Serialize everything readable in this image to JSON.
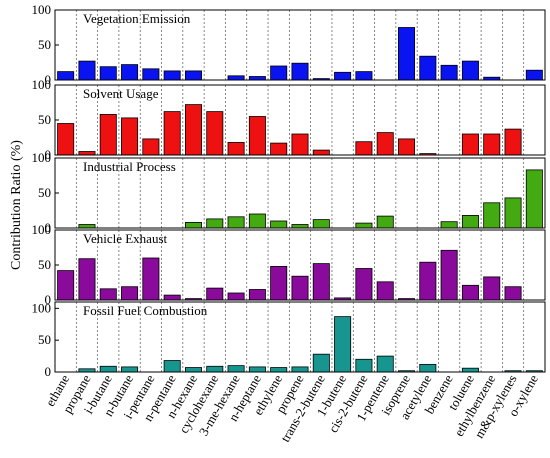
{
  "chart_data": {
    "type": "bar",
    "ylabel": "Contribution Ratio (%)",
    "categories": [
      "ethane",
      "propane",
      "i-butane",
      "n-butane",
      "i-pentane",
      "n-pentane",
      "n-hexane",
      "cyclohexane",
      "3-me-hexane",
      "n-heptane",
      "ethylene",
      "propene",
      "trans-2-butene",
      "1-butene",
      "cis-2-butene",
      "1-pentene",
      "isoprene",
      "acetylene",
      "benzene",
      "toluene",
      "ethylbenzene",
      "m&p-xylenes",
      "o-xylene"
    ],
    "panels": [
      {
        "title": "Vegetation Emission",
        "color": "#0a14f0",
        "ylim": [
          0,
          100
        ],
        "ticks": [
          0,
          50,
          100
        ],
        "values": [
          12,
          27,
          19,
          22,
          16,
          13,
          13,
          0,
          6,
          5,
          20,
          24,
          2,
          11,
          12,
          0,
          75,
          34,
          21,
          27,
          4,
          0,
          14
        ]
      },
      {
        "title": "Solvent Usage",
        "color": "#ee1111",
        "ylim": [
          0,
          100
        ],
        "ticks": [
          0,
          50,
          100
        ],
        "values": [
          45,
          5,
          58,
          53,
          23,
          62,
          72,
          62,
          18,
          55,
          17,
          30,
          7,
          0,
          19,
          32,
          23,
          2,
          0,
          30,
          30,
          37,
          0
        ]
      },
      {
        "title": "Industrial Process",
        "color": "#44aa11",
        "ylim": [
          0,
          100
        ],
        "ticks": [
          0,
          50,
          100
        ],
        "values": [
          0,
          5,
          0,
          0,
          0,
          0,
          8,
          13,
          16,
          20,
          10,
          5,
          12,
          0,
          7,
          17,
          0,
          0,
          9,
          18,
          36,
          43,
          83
        ]
      },
      {
        "title": "Vehicle Exhaust",
        "color": "#8a0a9c",
        "ylim": [
          0,
          100
        ],
        "ticks": [
          0,
          50,
          100
        ],
        "values": [
          42,
          59,
          16,
          19,
          60,
          7,
          2,
          17,
          10,
          15,
          48,
          34,
          52,
          3,
          45,
          26,
          2,
          54,
          71,
          21,
          33,
          19,
          0
        ]
      },
      {
        "title": "Fossil Fuel Combustion",
        "color": "#16968f",
        "ylim": [
          0,
          110
        ],
        "ticks": [
          0,
          50,
          100
        ],
        "values": [
          0,
          5,
          9,
          8,
          0,
          18,
          7,
          9,
          10,
          8,
          7,
          8,
          28,
          87,
          20,
          25,
          2,
          12,
          0,
          6,
          0,
          2,
          2
        ]
      }
    ]
  }
}
